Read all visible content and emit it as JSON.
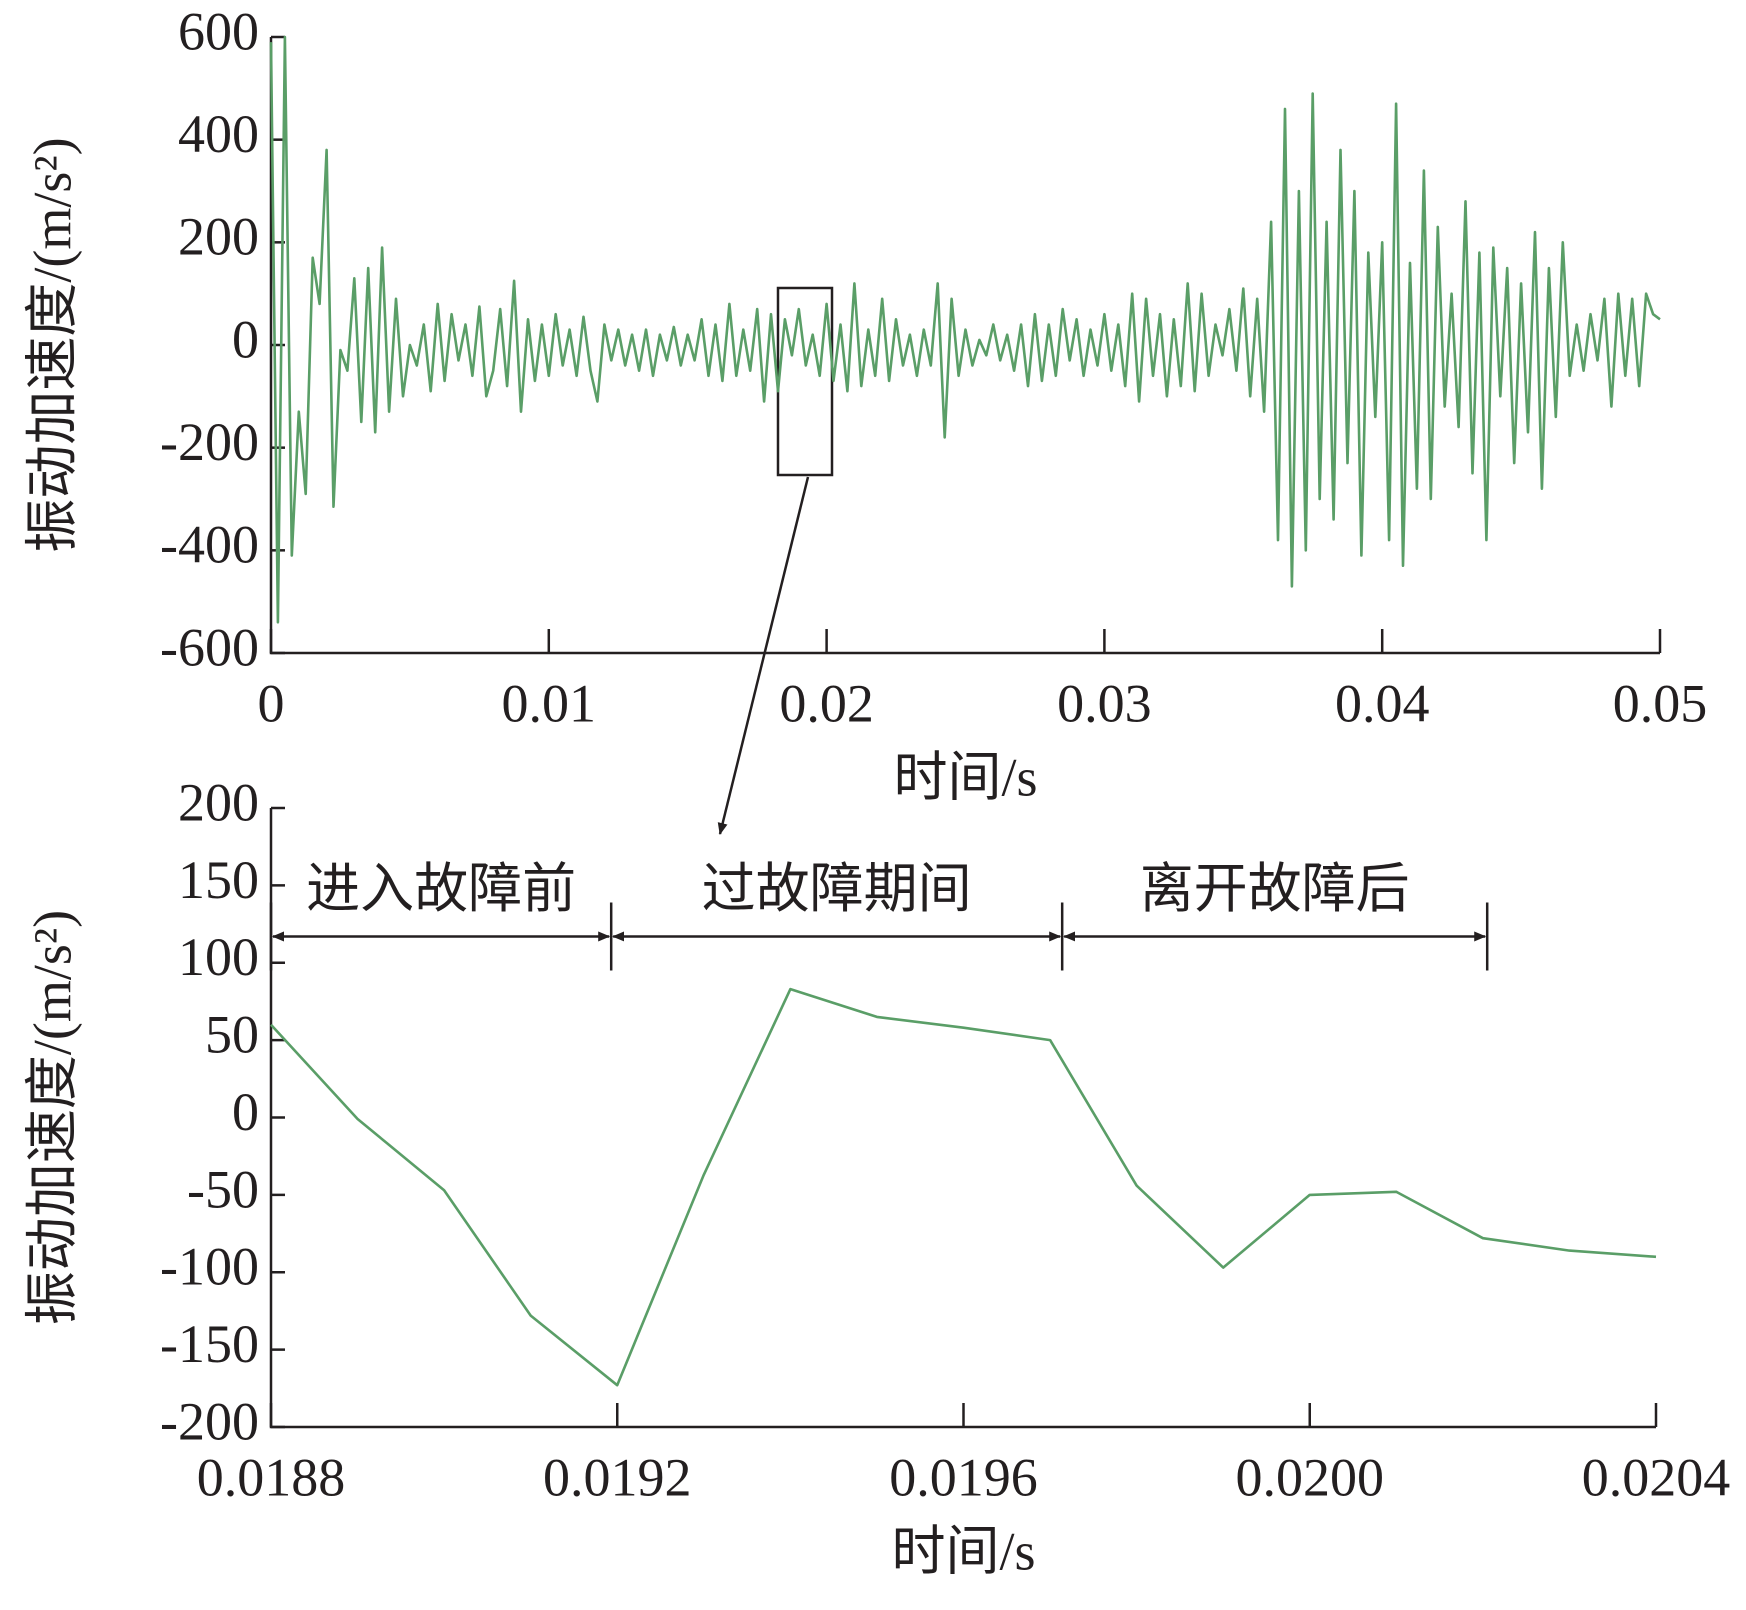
{
  "chart_data": [
    {
      "type": "line",
      "x_label": "时间/s",
      "y_label": "振动加速度/(m/s²)",
      "xlim": [
        0,
        0.05
      ],
      "xticks": [
        0,
        0.01,
        0.02,
        0.03,
        0.04,
        0.05
      ],
      "ylim": [
        -600,
        600
      ],
      "yticks": [
        -600,
        -400,
        -200,
        0,
        200,
        400,
        600
      ],
      "series": [
        {
          "color": "#5a9e67",
          "x": [
            0,
            0.00025,
            0.0005,
            0.00075,
            0.001,
            0.00125,
            0.0015,
            0.00175,
            0.002,
            0.00225,
            0.0025,
            0.00275,
            0.003,
            0.00325,
            0.0035,
            0.00375,
            0.004,
            0.00425,
            0.0045,
            0.00475,
            0.005,
            0.00525,
            0.0055,
            0.00575,
            0.006,
            0.00625,
            0.0065,
            0.00675,
            0.007,
            0.00725,
            0.0075,
            0.00775,
            0.008,
            0.00825,
            0.0085,
            0.00875,
            0.009,
            0.00925,
            0.0095,
            0.00975,
            0.01,
            0.01025,
            0.0105,
            0.01075,
            0.011,
            0.01125,
            0.0115,
            0.01175,
            0.012,
            0.01225,
            0.0125,
            0.01275,
            0.013,
            0.01325,
            0.0135,
            0.01375,
            0.014,
            0.01425,
            0.0145,
            0.01475,
            0.015,
            0.01525,
            0.0155,
            0.01575,
            0.016,
            0.01625,
            0.0165,
            0.01675,
            0.017,
            0.01725,
            0.0175,
            0.01775,
            0.018,
            0.01825,
            0.0185,
            0.01875,
            0.019,
            0.01925,
            0.0195,
            0.01975,
            0.02,
            0.02025,
            0.0205,
            0.02075,
            0.021,
            0.02125,
            0.0215,
            0.02175,
            0.022,
            0.02225,
            0.0225,
            0.02275,
            0.023,
            0.02325,
            0.0235,
            0.02375,
            0.024,
            0.02425,
            0.0245,
            0.02475,
            0.025,
            0.02525,
            0.0255,
            0.02575,
            0.026,
            0.02625,
            0.0265,
            0.02675,
            0.027,
            0.02725,
            0.0275,
            0.02775,
            0.028,
            0.02825,
            0.0285,
            0.02875,
            0.029,
            0.02925,
            0.0295,
            0.02975,
            0.03,
            0.03025,
            0.0305,
            0.03075,
            0.031,
            0.03125,
            0.0315,
            0.03175,
            0.032,
            0.03225,
            0.0325,
            0.03275,
            0.033,
            0.03325,
            0.0335,
            0.03375,
            0.034,
            0.03425,
            0.0345,
            0.03475,
            0.035,
            0.03525,
            0.0355,
            0.03575,
            0.036,
            0.03625,
            0.0365,
            0.03675,
            0.037,
            0.03725,
            0.0375,
            0.03775,
            0.038,
            0.03825,
            0.0385,
            0.03875,
            0.039,
            0.03925,
            0.0395,
            0.03975,
            0.04,
            0.04025,
            0.0405,
            0.04075,
            0.041,
            0.04125,
            0.0415,
            0.04175,
            0.042,
            0.04225,
            0.0425,
            0.04275,
            0.043,
            0.04325,
            0.0435,
            0.04375,
            0.044,
            0.04425,
            0.0445,
            0.04475,
            0.045,
            0.04525,
            0.0455,
            0.04575,
            0.046,
            0.04625,
            0.0465,
            0.04675,
            0.047,
            0.04725,
            0.0475,
            0.04775,
            0.048,
            0.04825,
            0.0485,
            0.04875,
            0.049,
            0.04925,
            0.0495,
            0.04975,
            0.05
          ],
          "values": [
            590,
            -540,
            600,
            -410,
            -130,
            -290,
            170,
            80,
            380,
            -315,
            -10,
            -50,
            130,
            -150,
            150,
            -170,
            190,
            -130,
            90,
            -100,
            0,
            -40,
            40,
            -90,
            80,
            -70,
            60,
            -30,
            40,
            -60,
            75,
            -100,
            -50,
            70,
            -80,
            125,
            -130,
            50,
            -70,
            40,
            -60,
            60,
            -40,
            30,
            -60,
            55,
            -50,
            -110,
            40,
            -30,
            30,
            -40,
            20,
            -50,
            30,
            -60,
            20,
            -30,
            35,
            -40,
            20,
            -30,
            50,
            -60,
            40,
            -70,
            80,
            -60,
            30,
            -50,
            70,
            -110,
            60,
            -90,
            50,
            -20,
            70,
            -40,
            20,
            -60,
            80,
            -70,
            40,
            -90,
            120,
            -80,
            30,
            -60,
            90,
            -70,
            50,
            -40,
            20,
            -60,
            30,
            -40,
            120,
            -180,
            90,
            -60,
            30,
            -40,
            10,
            -20,
            40,
            -30,
            20,
            -50,
            40,
            -80,
            60,
            -70,
            40,
            -60,
            70,
            -30,
            50,
            -60,
            30,
            -40,
            60,
            -50,
            40,
            -80,
            100,
            -110,
            90,
            -60,
            60,
            -100,
            50,
            -80,
            120,
            -90,
            100,
            -60,
            40,
            -20,
            70,
            -50,
            110,
            -100,
            90,
            -130,
            240,
            -380,
            460,
            -470,
            300,
            -400,
            490,
            -300,
            240,
            -340,
            380,
            -230,
            300,
            -410,
            180,
            -140,
            200,
            -380,
            470,
            -430,
            160,
            -280,
            340,
            -300,
            230,
            -120,
            100,
            -160,
            280,
            -250,
            180,
            -380,
            190,
            -100,
            150,
            -230,
            120,
            -170,
            220,
            -280,
            150,
            -140,
            200,
            -60,
            40,
            -50,
            60,
            -30,
            90,
            -120,
            100,
            -60,
            90,
            -80,
            100,
            60,
            50
          ]
        }
      ]
    },
    {
      "type": "line",
      "x_label": "时间/s",
      "y_label": "振动加速度/(m/s²)",
      "xlim": [
        0.0188,
        0.0204
      ],
      "xticks": [
        0.0188,
        0.0192,
        0.0196,
        {
          "value": 0.02,
          "label": "0.0200"
        },
        0.0204
      ],
      "ylim": [
        -200,
        200
      ],
      "yticks": [
        -200,
        -150,
        -100,
        -50,
        0,
        50,
        100,
        150,
        200
      ],
      "series": [
        {
          "color": "#5a9e67",
          "x": [
            0.0188,
            0.0189,
            0.019,
            0.0191,
            0.0192,
            0.0193,
            0.0194,
            0.0195,
            0.0196,
            0.0197,
            0.0198,
            0.0199,
            0.02,
            0.0201,
            0.0202,
            0.0203,
            0.0204
          ],
          "values": [
            60,
            -1,
            -47,
            -128,
            -173,
            -37,
            83,
            65,
            58,
            50,
            -44,
            -97,
            -50,
            -48,
            -78,
            -86,
            -90
          ]
        }
      ],
      "annotations": [
        {
          "text": "进入故障前",
          "x": [
            0.0188,
            0.019193
          ],
          "y": 117
        },
        {
          "text": "过故障期间",
          "x": [
            0.019193,
            0.019714
          ],
          "y": 117
        },
        {
          "text": "离开故障后",
          "x": [
            0.019714,
            0.020205
          ],
          "y": 117
        }
      ]
    }
  ]
}
